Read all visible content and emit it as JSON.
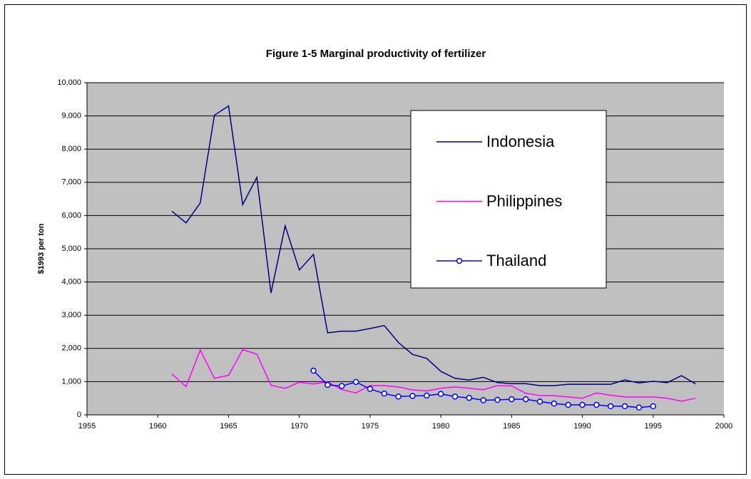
{
  "chart_data": {
    "type": "line",
    "title": "Figure 1-5 Marginal productivity of fertilizer",
    "y_label": "$1993 per ton",
    "x": [
      1961,
      1962,
      1963,
      1964,
      1965,
      1966,
      1967,
      1968,
      1969,
      1970,
      1971,
      1972,
      1973,
      1974,
      1975,
      1976,
      1977,
      1978,
      1979,
      1980,
      1981,
      1982,
      1983,
      1984,
      1985,
      1986,
      1987,
      1988,
      1989,
      1990,
      1991,
      1992,
      1993,
      1994,
      1995,
      1996,
      1997,
      1998
    ],
    "series": [
      {
        "name": "Indonesia",
        "color": "#000080",
        "marker": false,
        "values": [
          6130,
          5780,
          6380,
          9020,
          9300,
          6330,
          7150,
          3670,
          5690,
          4360,
          4830,
          2470,
          2520,
          2520,
          2600,
          2690,
          2180,
          1820,
          1700,
          1310,
          1100,
          1050,
          1130,
          970,
          940,
          940,
          880,
          880,
          920,
          920,
          920,
          920,
          1050,
          960,
          1010,
          970,
          1180,
          930
        ]
      },
      {
        "name": "Philippines",
        "color": "#ff00ff",
        "marker": false,
        "values": [
          1230,
          850,
          1950,
          1100,
          1190,
          1960,
          1830,
          890,
          800,
          980,
          930,
          990,
          760,
          660,
          880,
          880,
          840,
          750,
          720,
          800,
          840,
          800,
          760,
          880,
          870,
          650,
          580,
          580,
          540,
          500,
          660,
          590,
          540,
          540,
          540,
          500,
          410,
          500
        ]
      },
      {
        "name": "Thailand",
        "color": "#0000ff",
        "marker": true,
        "values": [
          null,
          null,
          null,
          null,
          null,
          null,
          null,
          null,
          null,
          null,
          1330,
          900,
          870,
          990,
          780,
          640,
          550,
          570,
          580,
          630,
          550,
          510,
          440,
          450,
          470,
          470,
          400,
          340,
          300,
          300,
          300,
          260,
          260,
          220,
          260,
          null,
          null,
          null
        ]
      }
    ],
    "xlim": [
      1955,
      2000
    ],
    "xticks": [
      1955,
      1960,
      1965,
      1970,
      1975,
      1980,
      1985,
      1990,
      1995,
      2000
    ],
    "ylim": [
      0,
      10000
    ],
    "yticks": [
      0,
      {
        "value": 1000,
        "label": "1,000"
      },
      {
        "value": 2000,
        "label": "2,000"
      },
      {
        "value": 3000,
        "label": "3,000"
      },
      {
        "value": 4000,
        "label": "4,000"
      },
      {
        "value": 5000,
        "label": "5,000"
      },
      {
        "value": 6000,
        "label": "6,000"
      },
      {
        "value": 7000,
        "label": "7,000"
      },
      {
        "value": 8000,
        "label": "8,000"
      },
      {
        "value": 9000,
        "label": "9,000"
      },
      {
        "value": 10000,
        "label": "10,000"
      }
    ],
    "grid": true,
    "plot_background": "#c0c0c0"
  }
}
